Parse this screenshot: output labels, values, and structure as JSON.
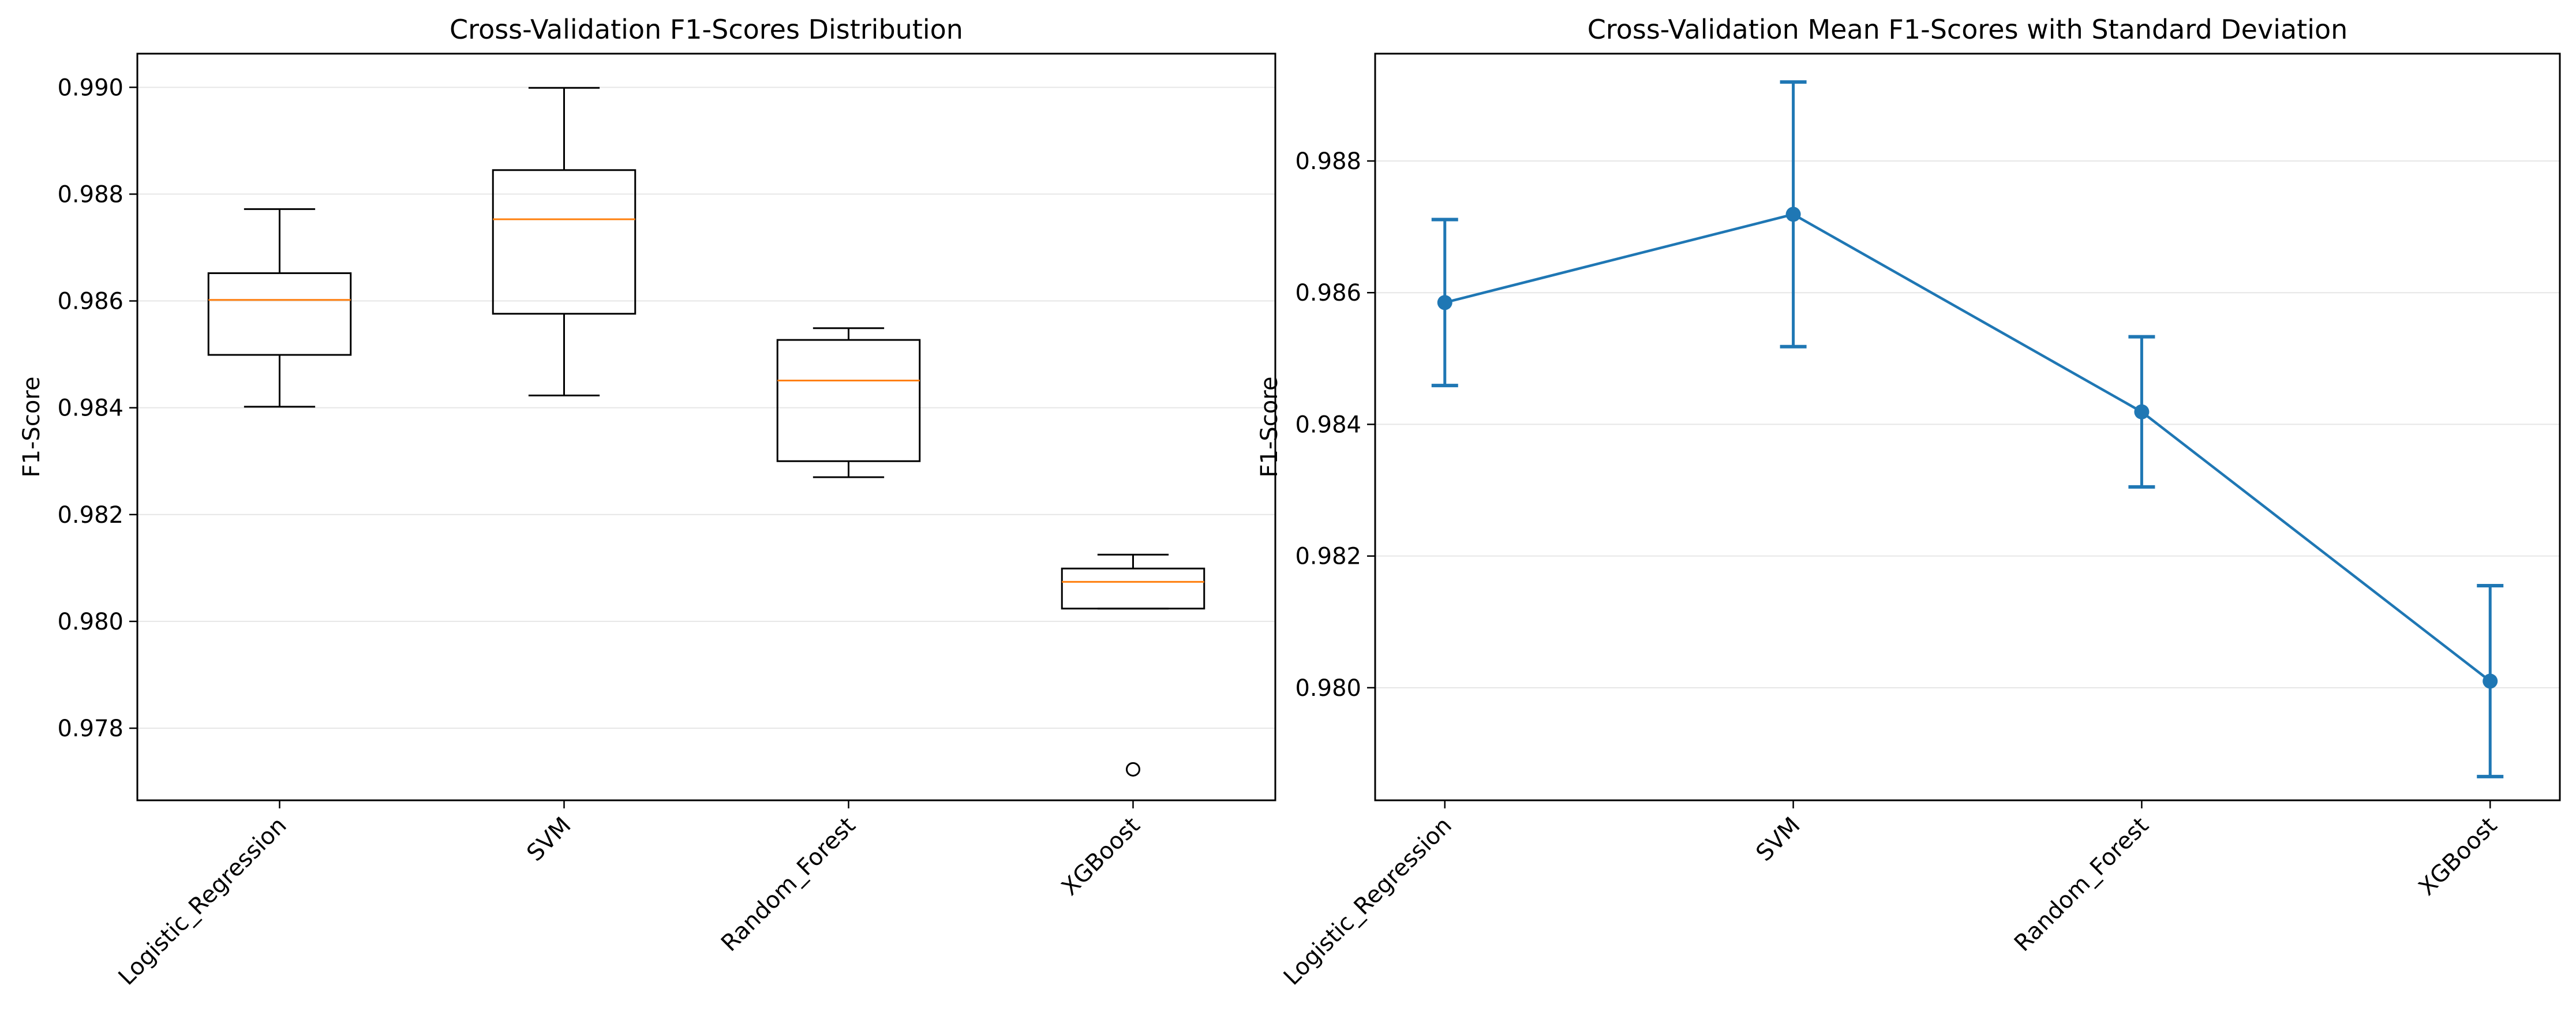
{
  "colors": {
    "box_edge": "#000000",
    "median": "#ff7f0e",
    "series": "#1f77b4",
    "grid": "#e6e6e6"
  },
  "chart_data": [
    {
      "type": "box",
      "title": "Cross-Validation F1-Scores Distribution",
      "xlabel": "",
      "ylabel": "F1-Score",
      "categories": [
        "Logistic_Regression",
        "SVM",
        "Random_Forest",
        "XGBoost"
      ],
      "boxes": [
        {
          "whisker_low": 0.98402,
          "q1": 0.98499,
          "median": 0.98602,
          "q3": 0.98652,
          "whisker_high": 0.98772,
          "outliers": []
        },
        {
          "whisker_low": 0.98423,
          "q1": 0.98576,
          "median": 0.98753,
          "q3": 0.98845,
          "whisker_high": 0.98999,
          "outliers": []
        },
        {
          "whisker_low": 0.9827,
          "q1": 0.983,
          "median": 0.98451,
          "q3": 0.98527,
          "whisker_high": 0.98549,
          "outliers": []
        },
        {
          "whisker_low": 0.98024,
          "q1": 0.98024,
          "median": 0.98074,
          "q3": 0.98099,
          "whisker_high": 0.98125,
          "outliers": [
            0.97723
          ]
        }
      ],
      "yticks": [
        "0.978",
        "0.980",
        "0.982",
        "0.984",
        "0.986",
        "0.988",
        "0.990"
      ],
      "ylim": [
        0.97665,
        0.99063
      ],
      "grid": "horizontal"
    },
    {
      "type": "line",
      "title": "Cross-Validation Mean F1-Scores with Standard Deviation",
      "xlabel": "",
      "ylabel": "F1-Score",
      "categories": [
        "Logistic_Regression",
        "SVM",
        "Random_Forest",
        "XGBoost"
      ],
      "series": [
        {
          "values": [
            0.98585,
            0.98719,
            0.98419,
            0.9801
          ],
          "std": [
            0.00126,
            0.00201,
            0.00114,
            0.00145
          ]
        }
      ],
      "yticks": [
        "0.980",
        "0.982",
        "0.984",
        "0.986",
        "0.988"
      ],
      "ylim": [
        0.97829,
        0.98963
      ],
      "grid": "horizontal",
      "markers": true
    }
  ]
}
